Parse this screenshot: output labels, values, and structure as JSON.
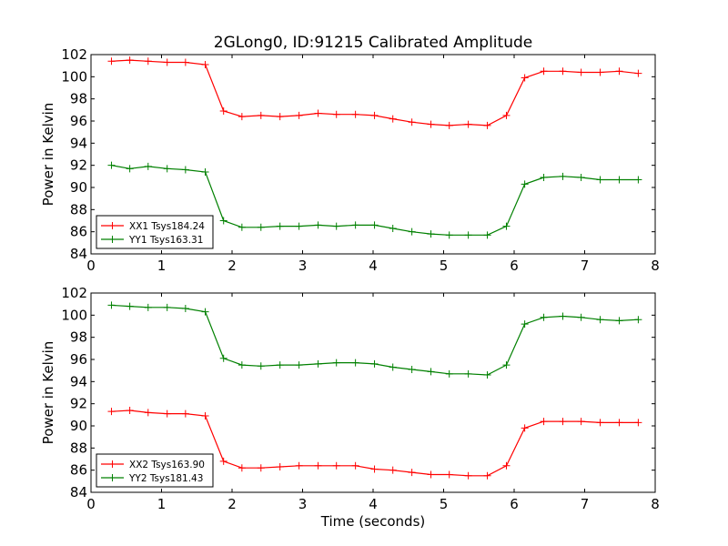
{
  "figure": {
    "title": "2GLong0, ID:91215 Calibrated Amplitude",
    "xlabel": "Time (seconds)"
  },
  "chart_data": [
    {
      "type": "line",
      "title": "2GLong0, ID:91215 Calibrated Amplitude",
      "xlabel": "",
      "ylabel": "Power in Kelvin",
      "xlim": [
        0,
        8
      ],
      "ylim": [
        84,
        102
      ],
      "xticks": [
        "0",
        "1",
        "2",
        "3",
        "4",
        "5",
        "6",
        "7",
        "8"
      ],
      "yticks": [
        "84",
        "86",
        "88",
        "90",
        "92",
        "94",
        "96",
        "98",
        "100",
        "102"
      ],
      "grid": false,
      "legend_position": "lower-left",
      "x": [
        0.29,
        0.55,
        0.81,
        1.08,
        1.34,
        1.62,
        1.88,
        2.14,
        2.41,
        2.68,
        2.95,
        3.22,
        3.48,
        3.75,
        4.02,
        4.28,
        4.55,
        4.82,
        5.08,
        5.35,
        5.62,
        5.89,
        6.15,
        6.42,
        6.69,
        6.95,
        7.22,
        7.49,
        7.76
      ],
      "series": [
        {
          "name": "XX1 Tsys184.24",
          "color": "#ff0000",
          "values": [
            101.4,
            101.5,
            101.4,
            101.3,
            101.3,
            101.1,
            96.9,
            96.4,
            96.5,
            96.4,
            96.5,
            96.7,
            96.6,
            96.6,
            96.5,
            96.2,
            95.9,
            95.7,
            95.6,
            95.7,
            95.6,
            96.5,
            99.9,
            100.5,
            100.5,
            100.4,
            100.4,
            100.5,
            100.3
          ]
        },
        {
          "name": "YY1 Tsys163.31",
          "color": "#008000",
          "values": [
            92.0,
            91.7,
            91.9,
            91.7,
            91.6,
            91.4,
            87.0,
            86.4,
            86.4,
            86.5,
            86.5,
            86.6,
            86.5,
            86.6,
            86.6,
            86.3,
            86.0,
            85.8,
            85.7,
            85.7,
            85.7,
            86.5,
            90.3,
            90.9,
            91.0,
            90.9,
            90.7,
            90.7,
            90.7
          ]
        }
      ]
    },
    {
      "type": "line",
      "title": "",
      "xlabel": "Time (seconds)",
      "ylabel": "Power in Kelvin",
      "xlim": [
        0,
        8
      ],
      "ylim": [
        84,
        102
      ],
      "xticks": [
        "0",
        "1",
        "2",
        "3",
        "4",
        "5",
        "6",
        "7",
        "8"
      ],
      "yticks": [
        "84",
        "86",
        "88",
        "90",
        "92",
        "94",
        "96",
        "98",
        "100",
        "102"
      ],
      "grid": false,
      "legend_position": "lower-left",
      "x": [
        0.29,
        0.55,
        0.81,
        1.08,
        1.34,
        1.62,
        1.88,
        2.14,
        2.41,
        2.68,
        2.95,
        3.22,
        3.48,
        3.75,
        4.02,
        4.28,
        4.55,
        4.82,
        5.08,
        5.35,
        5.62,
        5.89,
        6.15,
        6.42,
        6.69,
        6.95,
        7.22,
        7.49,
        7.76
      ],
      "series": [
        {
          "name": "XX2 Tsys163.90",
          "color": "#ff0000",
          "values": [
            91.3,
            91.4,
            91.2,
            91.1,
            91.1,
            90.9,
            86.8,
            86.2,
            86.2,
            86.3,
            86.4,
            86.4,
            86.4,
            86.4,
            86.1,
            86.0,
            85.8,
            85.6,
            85.6,
            85.5,
            85.5,
            86.4,
            89.8,
            90.4,
            90.4,
            90.4,
            90.3,
            90.3,
            90.3
          ]
        },
        {
          "name": "YY2 Tsys181.43",
          "color": "#008000",
          "values": [
            100.9,
            100.8,
            100.7,
            100.7,
            100.6,
            100.3,
            96.1,
            95.5,
            95.4,
            95.5,
            95.5,
            95.6,
            95.7,
            95.7,
            95.6,
            95.3,
            95.1,
            94.9,
            94.7,
            94.7,
            94.6,
            95.5,
            99.2,
            99.8,
            99.9,
            99.8,
            99.6,
            99.5,
            99.6
          ]
        }
      ]
    }
  ]
}
